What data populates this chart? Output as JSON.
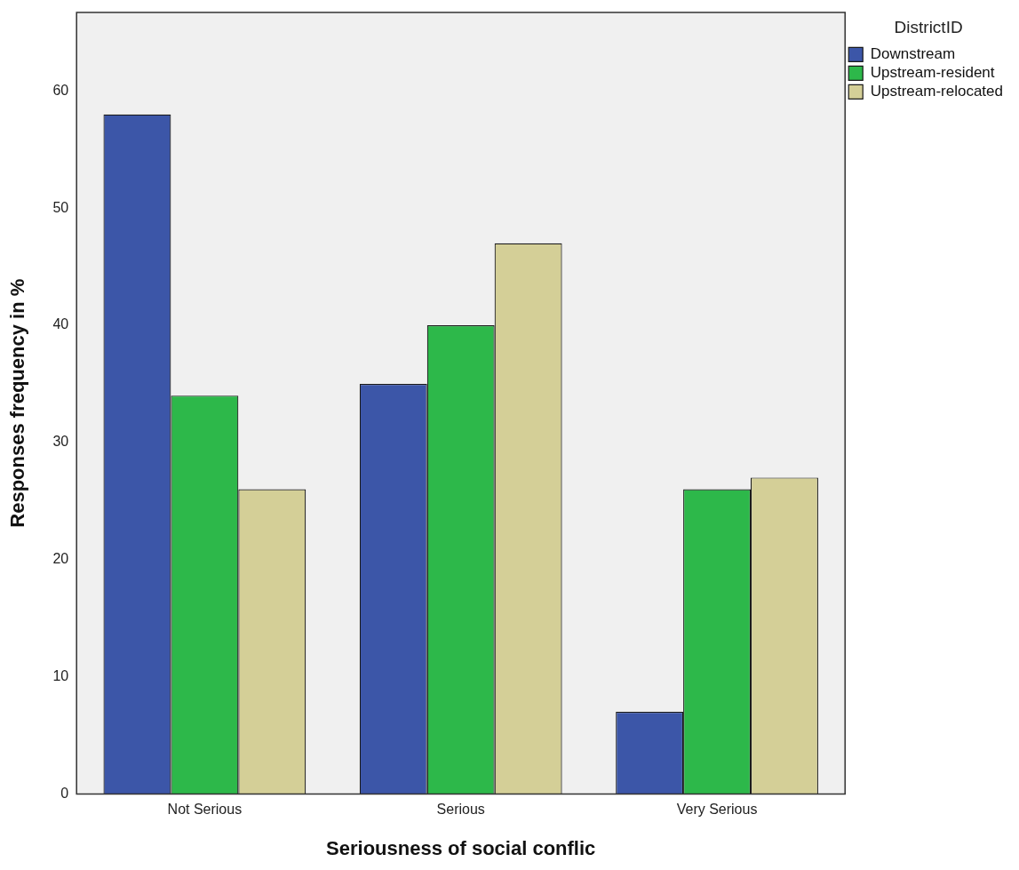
{
  "chart_data": {
    "type": "bar",
    "xlabel": "Seriousness of social conflic",
    "ylabel": "Responses frequency in %",
    "legend_title": "DistrictID",
    "legend": "top right",
    "categories": [
      "Not Serious",
      "Serious",
      "Very Serious"
    ],
    "series": [
      {
        "name": "Downstream",
        "color": "#3c56a8",
        "values": [
          58,
          35,
          7
        ]
      },
      {
        "name": "Upstream-resident",
        "color": "#2db84a",
        "values": [
          34,
          40,
          26
        ]
      },
      {
        "name": "Upstream-relocated",
        "color": "#d4cf97",
        "values": [
          26,
          47,
          27
        ]
      }
    ],
    "ylim": [
      0,
      66.7
    ],
    "yticks": [
      0,
      10,
      20,
      30,
      40,
      50,
      60
    ],
    "grid": false
  }
}
